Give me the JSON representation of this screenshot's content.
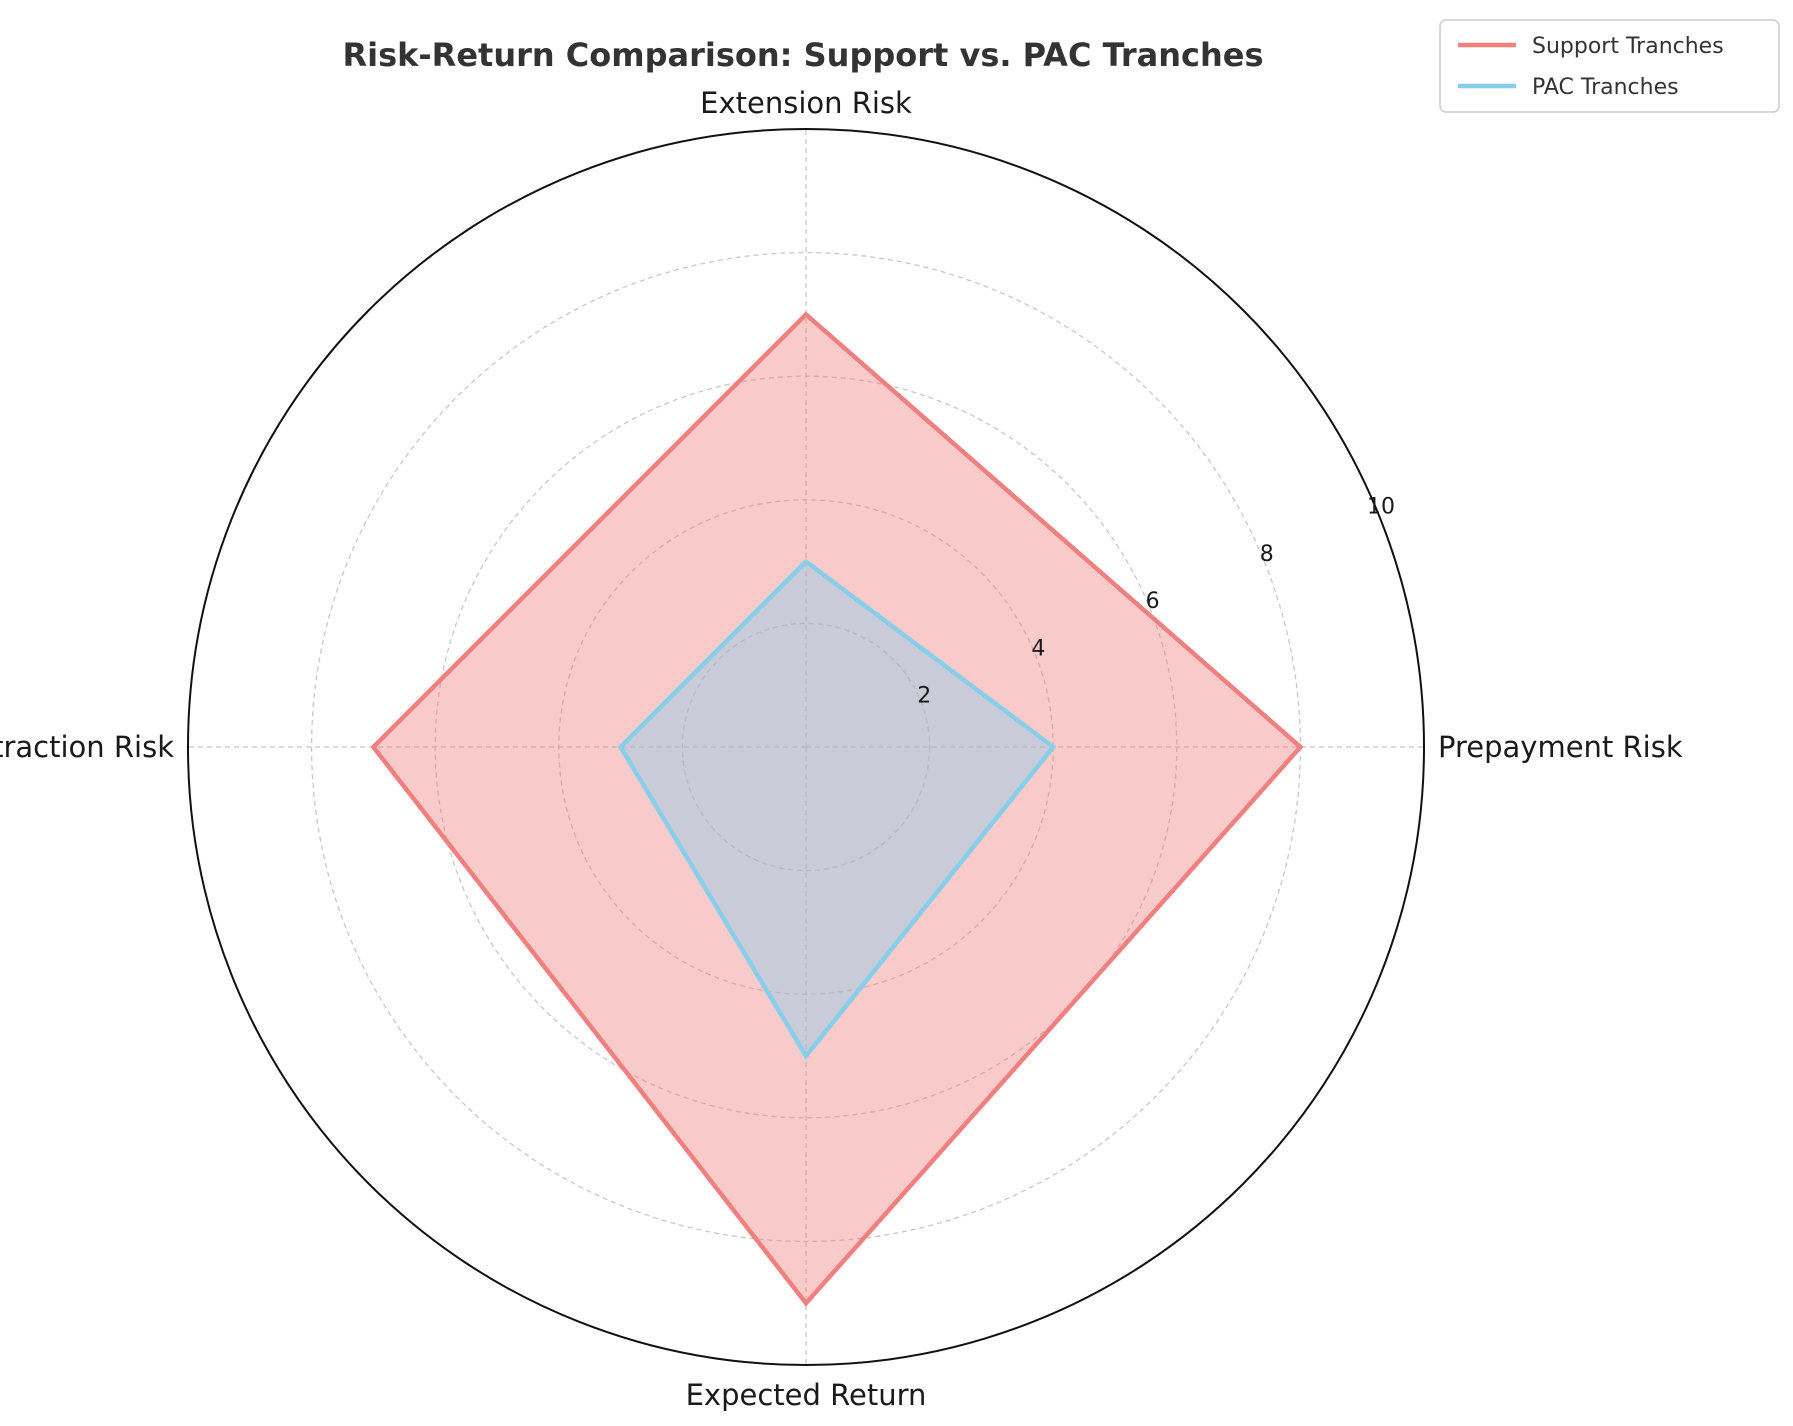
{
  "chart_data": {
    "type": "radar",
    "title": "Risk-Return Comparison: Support vs. PAC Tranches",
    "categories": [
      "Prepayment Risk",
      "Extension Risk",
      "Contraction Risk",
      "Expected Return"
    ],
    "series": [
      {
        "name": "Support Tranches",
        "values": [
          8,
          7,
          7,
          9
        ],
        "color": "#f08080"
      },
      {
        "name": "PAC Tranches",
        "values": [
          4,
          3,
          3,
          5
        ],
        "color": "#87ceeb"
      }
    ],
    "rlim": [
      0,
      10
    ],
    "r_ticks": [
      "2",
      "4",
      "6",
      "8",
      "10"
    ],
    "grid": true,
    "legend_position": "top-right"
  }
}
